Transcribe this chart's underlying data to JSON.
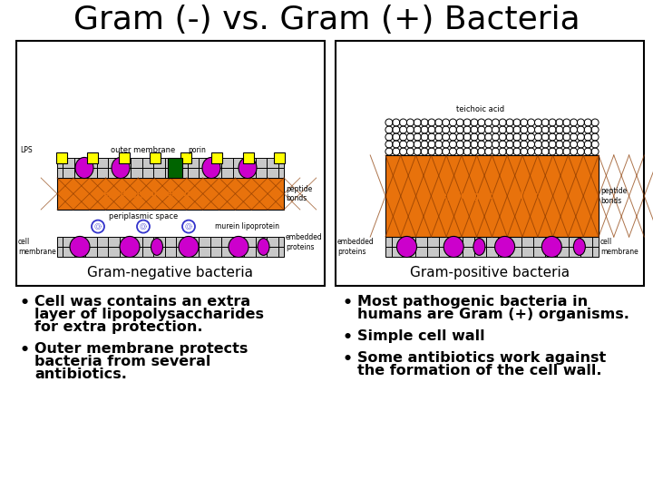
{
  "title": "Gram (-) vs. Gram (+) Bacteria",
  "title_fontsize": 26,
  "background_color": "#ffffff",
  "left_bullets": [
    "Cell was contains an extra\nlayer of lipopolysaccharides\nfor extra protection.",
    "Outer membrane protects\nbacteria from several\nantibiotics."
  ],
  "right_bullets": [
    "Most pathogenic bacteria in\nhumans are Gram (+) organisms.",
    "Simple cell wall",
    "Some antibiotics work against\nthe formation of the cell wall."
  ],
  "left_label": "Gram-negative bacteria",
  "right_label": "Gram-positive bacteria",
  "bullet_fontsize": 11.5,
  "orange": "#E8720C",
  "magenta": "#CC00CC",
  "yellow": "#FFFF00",
  "green": "#228B22",
  "black": "#000000",
  "white": "#ffffff",
  "lgray": "#C8C8C8"
}
